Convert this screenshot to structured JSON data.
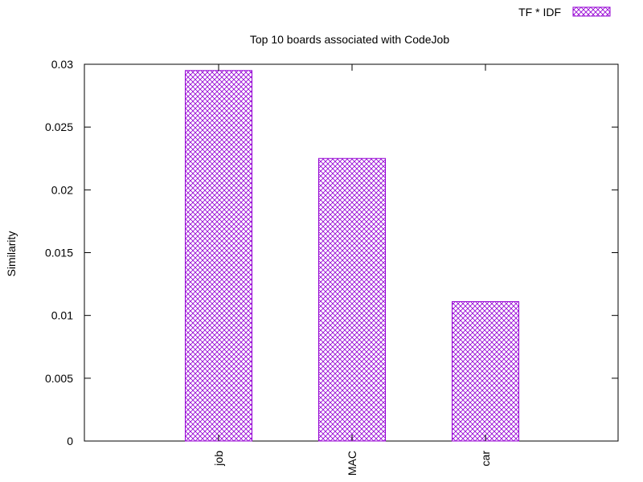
{
  "chart_data": {
    "type": "bar",
    "title": "Top 10 boards associated with CodeJob",
    "ylabel": "Similarity",
    "xlabel": "",
    "categories": [
      "job",
      "MAC",
      "car"
    ],
    "series": [
      {
        "name": "TF * IDF",
        "values": [
          0.0295,
          0.0225,
          0.0111
        ]
      }
    ],
    "ylim": [
      0,
      0.03
    ],
    "yticks": [
      "0",
      "0.005",
      "0.01",
      "0.015",
      "0.02",
      "0.025",
      "0.03"
    ],
    "legend_position": "top-right",
    "grid": false,
    "bar_color": "#9400d3",
    "bar_pattern": "crosshatch"
  }
}
